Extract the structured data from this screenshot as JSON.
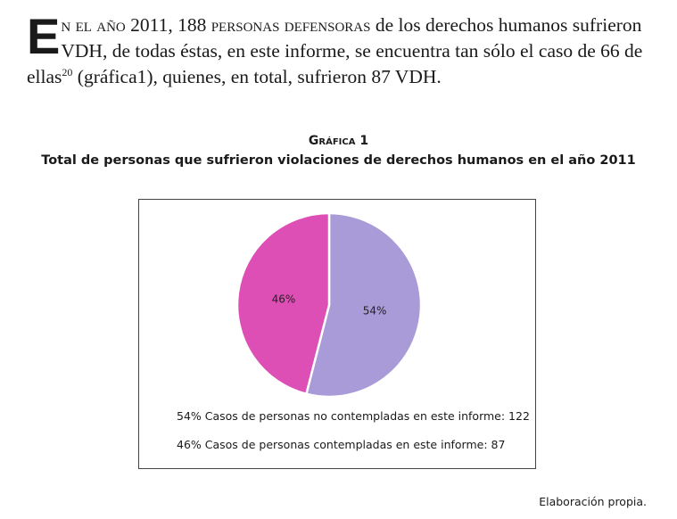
{
  "paragraph": {
    "dropcap": "E",
    "line1_smallcaps_a": "n el año",
    "line1_text_a": " 2011, 188 ",
    "line1_smallcaps_b": "personas defensoras",
    "line1_text_b": " de los derechos humanos sufrieron",
    "line2": "VDH, de todas éstas, en este informe, se encuentra tan sólo el caso de 66 de",
    "line3_pre": "ellas",
    "line3_sup": "20",
    "line3_post": " (gráfica1), quienes, en total, sufrieron 87 VDH."
  },
  "figure": {
    "kicker": "Gráfica 1",
    "title": "Total de personas que sufrieron violaciones de derechos humanos en el año 2011",
    "source": "Elaboración propia."
  },
  "chart_data": {
    "type": "pie",
    "title": "Total de personas que sufrieron violaciones de derechos humanos en el año 2011",
    "slices": [
      {
        "label": "54%",
        "value": 54,
        "color": "#A99AD8"
      },
      {
        "label": "46%",
        "value": 46,
        "color": "#DD4FB5"
      }
    ],
    "legend": [
      "54% Casos de personas no contempladas en este informe: 122",
      "46% Casos de personas contempladas en este informe: 87"
    ],
    "legend_position": "bottom"
  }
}
